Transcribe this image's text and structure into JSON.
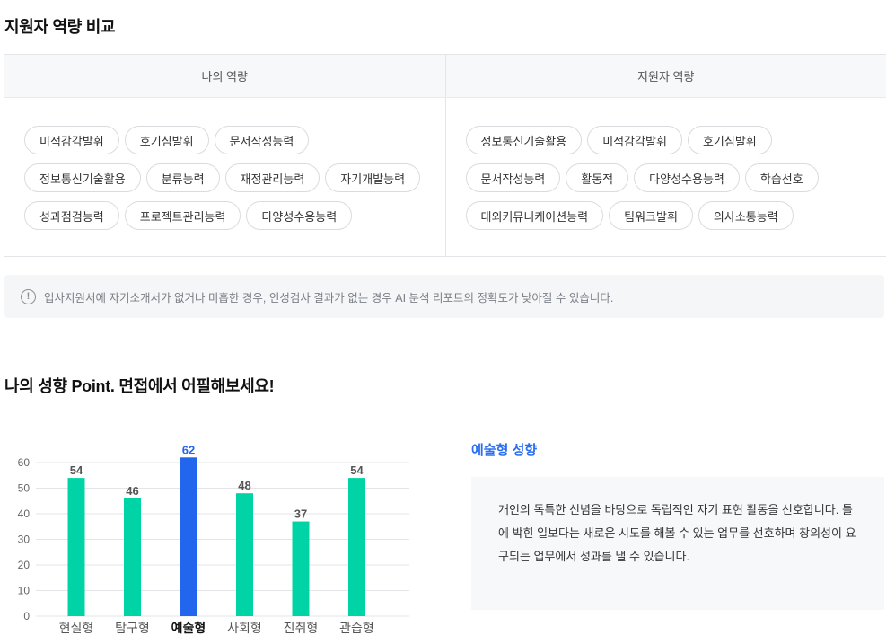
{
  "compare_section": {
    "title": "지원자 역량 비교",
    "mine_header": "나의 역량",
    "applicant_header": "지원자 역량",
    "mine_rows": [
      [
        "미적감각발휘",
        "호기심발휘",
        "문서작성능력"
      ],
      [
        "정보통신기술활용",
        "분류능력",
        "재정관리능력",
        "자기개발능력"
      ],
      [
        "성과점검능력",
        "프로젝트관리능력",
        "다양성수용능력"
      ]
    ],
    "applicant_rows": [
      [
        "정보통신기술활용",
        "미적감각발휘",
        "호기심발휘"
      ],
      [
        "문서작성능력",
        "활동적",
        "다양성수용능력",
        "학습선호"
      ],
      [
        "대외커뮤니케이션능력",
        "팀워크발휘",
        "의사소통능력"
      ]
    ]
  },
  "notice": {
    "icon": "info-icon",
    "text": "입사지원서에 자기소개서가 없거나 미흡한 경우, 인성검사 결과가 없는 경우 AI 분석 리포트의 정확도가 낮아질 수 있습니다."
  },
  "tendency_section": {
    "title": "나의 성향 Point. 면접에서 어필해보세요!",
    "type_title": "예술형 성향",
    "description": "개인의 독특한 신념을 바탕으로 독립적인 자기 표현 활동을 선호합니다. 틀에 박힌 일보다는 새로운 시도를 해볼 수 있는 업무를 선호하며 창의성이 요구되는 업무에서 성과를 낼 수 있습니다."
  },
  "chart_data": {
    "type": "bar",
    "categories": [
      "현실형",
      "탐구형",
      "예술형",
      "사회형",
      "진취형",
      "관습형"
    ],
    "values": [
      54,
      46,
      62,
      48,
      37,
      54
    ],
    "highlight_index": 2,
    "ylim": [
      0,
      60
    ],
    "yticks": [
      0,
      10,
      20,
      30,
      40,
      50,
      60
    ],
    "grid": true,
    "colors": {
      "default": "#00d4a6",
      "highlight": "#2266ee",
      "label_default": "#555555",
      "label_highlight": "#2266ee",
      "grid": "#e3e5e8"
    }
  }
}
